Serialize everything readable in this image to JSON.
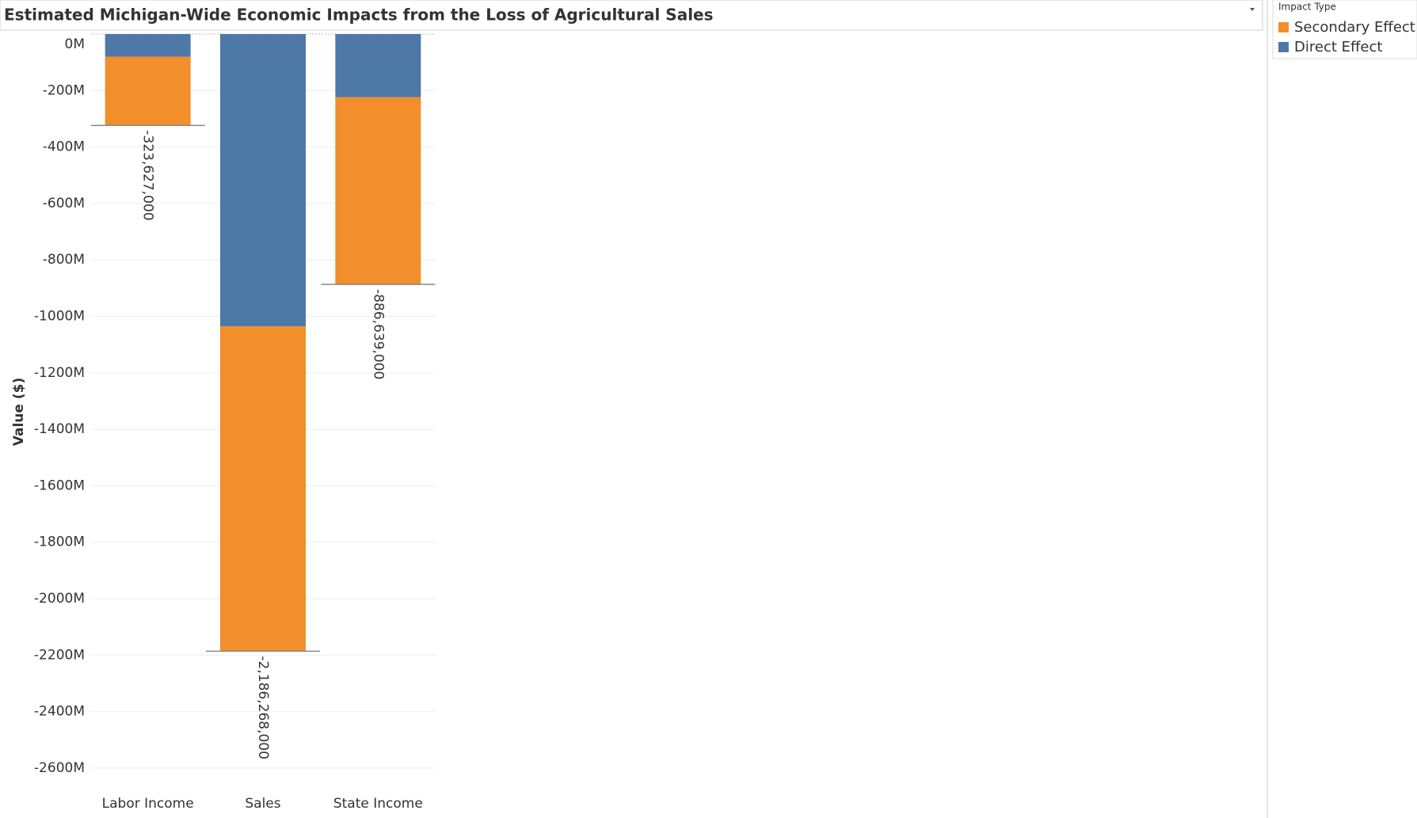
{
  "chart_data": {
    "type": "stacked-bar",
    "title": "Estimated Michigan-Wide Economic Impacts from the Loss of Agricultural Sales",
    "y_label": "Value ($)",
    "legend_title": "Impact Type",
    "categories": [
      "Labor Income",
      "Sales",
      "State Income"
    ],
    "series": [
      {
        "name": "Secondary Effect",
        "color": "#f28e2b",
        "values": [
          -244000000,
          -1151000000,
          -663000000
        ]
      },
      {
        "name": "Direct Effect",
        "color": "#4e79a7",
        "values": [
          -80000000,
          -1035000000,
          -224000000
        ]
      }
    ],
    "totals": [
      -323627000,
      -2186268000,
      -886639000
    ],
    "total_labels": [
      "-323,627,000",
      "-2,186,268,000",
      "-886,639,000"
    ],
    "ylim": [
      -2690000000,
      0
    ],
    "yticks": [
      {
        "value": 0,
        "label": "0M"
      },
      {
        "value": -200000000,
        "label": "-200M"
      },
      {
        "value": -400000000,
        "label": "-400M"
      },
      {
        "value": -600000000,
        "label": "-600M"
      },
      {
        "value": -800000000,
        "label": "-800M"
      },
      {
        "value": -1000000000,
        "label": "-1000M"
      },
      {
        "value": -1200000000,
        "label": "-1200M"
      },
      {
        "value": -1400000000,
        "label": "-1400M"
      },
      {
        "value": -1600000000,
        "label": "-1600M"
      },
      {
        "value": -1800000000,
        "label": "-1800M"
      },
      {
        "value": -2000000000,
        "label": "-2000M"
      },
      {
        "value": -2200000000,
        "label": "-2200M"
      },
      {
        "value": -2400000000,
        "label": "-2400M"
      },
      {
        "value": -2600000000,
        "label": "-2600M"
      }
    ],
    "grid": true,
    "legend_position": "right"
  }
}
